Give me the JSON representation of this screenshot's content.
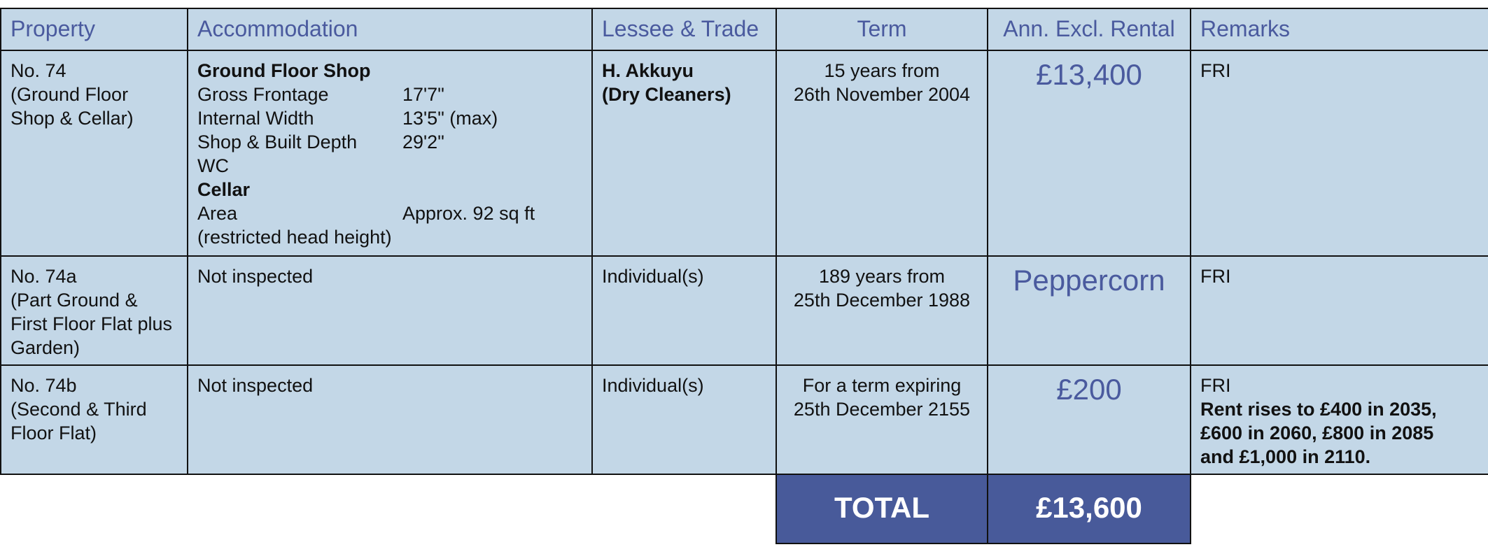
{
  "table": {
    "columns": [
      "Property",
      "Accommodation",
      "Lessee & Trade",
      "Term",
      "Ann. Excl. Rental",
      "Remarks"
    ],
    "rows": [
      {
        "property": [
          "No. 74",
          "(Ground Floor",
          "Shop & Cellar)"
        ],
        "accommodation": [
          {
            "heading": "Ground Floor Shop"
          },
          {
            "label": "Gross Frontage",
            "value": "17'7\""
          },
          {
            "label": "Internal Width",
            "value": "13'5\" (max)"
          },
          {
            "label": "Shop & Built Depth",
            "value": "29'2\""
          },
          {
            "label": "WC"
          },
          {
            "heading": "Cellar"
          },
          {
            "label": "Area",
            "value": "Approx. 92 sq ft"
          },
          {
            "label": "(restricted head height)"
          }
        ],
        "lessee": [
          "H. Akkuyu",
          "(Dry Cleaners)"
        ],
        "lessee_bold": true,
        "term": [
          "15 years from",
          "26th November 2004"
        ],
        "rental": "£13,400",
        "remarks": [
          "FRI"
        ]
      },
      {
        "property": [
          "No. 74a",
          "(Part Ground &",
          "First Floor Flat plus",
          "Garden)"
        ],
        "accommodation": [
          {
            "label": "Not inspected"
          }
        ],
        "lessee": [
          "Individual(s)"
        ],
        "lessee_bold": false,
        "term": [
          "189 years from",
          "25th December 1988"
        ],
        "rental": "Peppercorn",
        "remarks": [
          "FRI"
        ]
      },
      {
        "property": [
          "No. 74b",
          "(Second & Third",
          "Floor Flat)"
        ],
        "accommodation": [
          {
            "label": "Not inspected"
          }
        ],
        "lessee": [
          "Individual(s)"
        ],
        "lessee_bold": false,
        "term": [
          "For a term expiring",
          "25th December 2155"
        ],
        "rental": "£200",
        "remarks": [
          "FRI"
        ],
        "remarks_note": [
          "Rent rises to £400 in 2035,",
          "£600 in 2060, £800 in 2085",
          "and £1,000 in 2110."
        ]
      }
    ],
    "total": {
      "label": "TOTAL",
      "value": "£13,600"
    }
  }
}
